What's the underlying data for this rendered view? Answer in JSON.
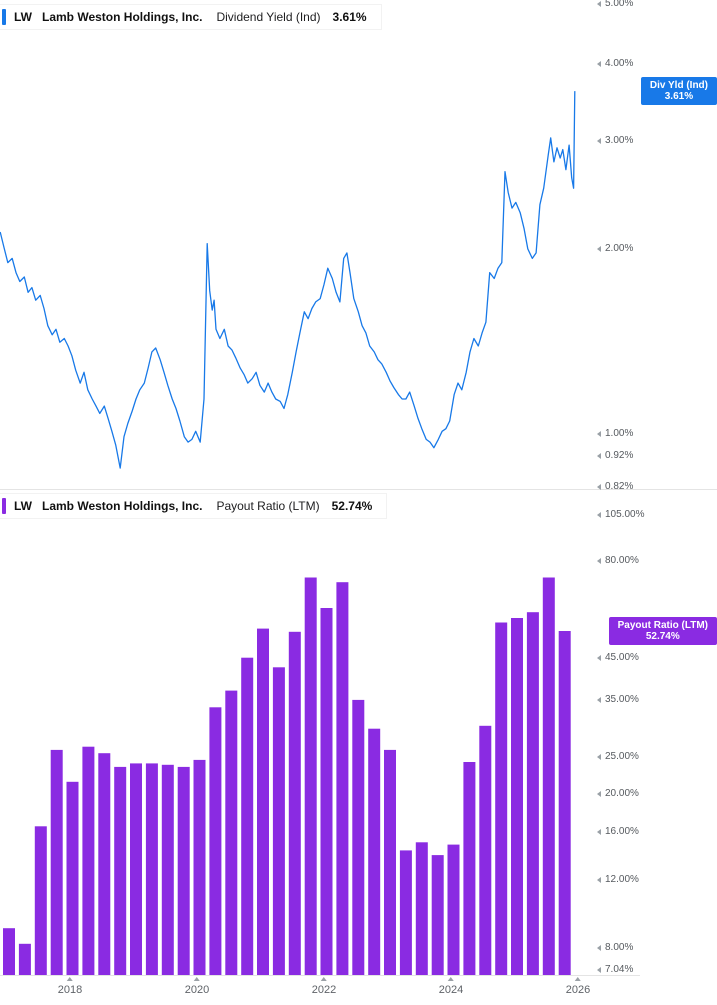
{
  "panels": [
    {
      "id": "dividend-yield",
      "color": "#1879e8",
      "legend": {
        "ticker": "LW",
        "company": "Lamb Weston Holdings, Inc.",
        "metric": "Dividend Yield (Ind)",
        "value": "3.61%"
      },
      "badge": {
        "line1": "Div Yld (Ind)",
        "line2": "3.61%",
        "value_num": 3.61
      },
      "y_ticks": [
        {
          "label": "5.00%",
          "value": 5.0
        },
        {
          "label": "4.00%",
          "value": 4.0
        },
        {
          "label": "3.00%",
          "value": 3.0
        },
        {
          "label": "2.00%",
          "value": 2.0
        },
        {
          "label": "1.00%",
          "value": 1.0
        },
        {
          "label": "0.92%",
          "value": 0.92
        },
        {
          "label": "0.82%",
          "value": 0.82
        }
      ]
    },
    {
      "id": "payout-ratio",
      "color": "#8a2be2",
      "legend": {
        "ticker": "LW",
        "company": "Lamb Weston Holdings, Inc.",
        "metric": "Payout Ratio (LTM)",
        "value": "52.74%"
      },
      "badge": {
        "line1": "Payout Ratio (LTM)",
        "line2": "52.74%",
        "value_num": 52.74
      },
      "y_ticks": [
        {
          "label": "105.00%",
          "value": 105
        },
        {
          "label": "80.00%",
          "value": 80
        },
        {
          "label": "45.00%",
          "value": 45
        },
        {
          "label": "35.00%",
          "value": 35
        },
        {
          "label": "25.00%",
          "value": 25
        },
        {
          "label": "20.00%",
          "value": 20
        },
        {
          "label": "16.00%",
          "value": 16
        },
        {
          "label": "12.00%",
          "value": 12
        },
        {
          "label": "8.00%",
          "value": 8
        },
        {
          "label": "7.04%",
          "value": 7.04
        }
      ]
    }
  ],
  "x_axis": {
    "ticks": [
      {
        "label": "2018",
        "year": 2018
      },
      {
        "label": "2020",
        "year": 2020
      },
      {
        "label": "2022",
        "year": 2022
      },
      {
        "label": "2024",
        "year": 2024
      },
      {
        "label": "2026",
        "year": 2026
      }
    ]
  },
  "chart_data": [
    {
      "type": "line",
      "title": "LW Lamb Weston Holdings, Inc. Dividend Yield (Ind) 3.61%",
      "name": "Dividend Yield (Ind)",
      "unit": "percent",
      "y_scale": "log",
      "x_range": [
        2016.9,
        2025.95
      ],
      "y_ticks": [
        5.0,
        4.0,
        3.0,
        2.0,
        1.0,
        0.92,
        0.82
      ],
      "last_value": 3.61,
      "series": [
        [
          2016.9,
          2.13
        ],
        [
          2016.96,
          2.01
        ],
        [
          2017.02,
          1.9
        ],
        [
          2017.09,
          1.93
        ],
        [
          2017.15,
          1.83
        ],
        [
          2017.21,
          1.77
        ],
        [
          2017.28,
          1.8
        ],
        [
          2017.34,
          1.7
        ],
        [
          2017.4,
          1.73
        ],
        [
          2017.46,
          1.65
        ],
        [
          2017.53,
          1.68
        ],
        [
          2017.59,
          1.6
        ],
        [
          2017.65,
          1.5
        ],
        [
          2017.72,
          1.45
        ],
        [
          2017.78,
          1.48
        ],
        [
          2017.84,
          1.41
        ],
        [
          2017.91,
          1.43
        ],
        [
          2017.97,
          1.39
        ],
        [
          2018.03,
          1.34
        ],
        [
          2018.09,
          1.27
        ],
        [
          2018.16,
          1.21
        ],
        [
          2018.22,
          1.26
        ],
        [
          2018.28,
          1.18
        ],
        [
          2018.35,
          1.14
        ],
        [
          2018.41,
          1.11
        ],
        [
          2018.47,
          1.08
        ],
        [
          2018.54,
          1.11
        ],
        [
          2018.6,
          1.06
        ],
        [
          2018.66,
          1.01
        ],
        [
          2018.72,
          0.96
        ],
        [
          2018.79,
          0.88
        ],
        [
          2018.85,
          0.99
        ],
        [
          2018.91,
          1.04
        ],
        [
          2018.98,
          1.09
        ],
        [
          2019.04,
          1.14
        ],
        [
          2019.1,
          1.18
        ],
        [
          2019.17,
          1.21
        ],
        [
          2019.23,
          1.28
        ],
        [
          2019.29,
          1.36
        ],
        [
          2019.35,
          1.38
        ],
        [
          2019.42,
          1.32
        ],
        [
          2019.48,
          1.26
        ],
        [
          2019.54,
          1.2
        ],
        [
          2019.61,
          1.14
        ],
        [
          2019.67,
          1.1
        ],
        [
          2019.73,
          1.05
        ],
        [
          2019.8,
          0.99
        ],
        [
          2019.86,
          0.97
        ],
        [
          2019.92,
          0.98
        ],
        [
          2019.98,
          1.01
        ],
        [
          2020.05,
          0.97
        ],
        [
          2020.11,
          1.14
        ],
        [
          2020.16,
          2.04
        ],
        [
          2020.2,
          1.71
        ],
        [
          2020.24,
          1.59
        ],
        [
          2020.27,
          1.65
        ],
        [
          2020.3,
          1.48
        ],
        [
          2020.36,
          1.43
        ],
        [
          2020.43,
          1.48
        ],
        [
          2020.49,
          1.39
        ],
        [
          2020.55,
          1.37
        ],
        [
          2020.61,
          1.33
        ],
        [
          2020.68,
          1.28
        ],
        [
          2020.74,
          1.25
        ],
        [
          2020.8,
          1.21
        ],
        [
          2020.87,
          1.23
        ],
        [
          2020.93,
          1.26
        ],
        [
          2020.99,
          1.2
        ],
        [
          2021.06,
          1.17
        ],
        [
          2021.12,
          1.21
        ],
        [
          2021.18,
          1.17
        ],
        [
          2021.24,
          1.14
        ],
        [
          2021.31,
          1.13
        ],
        [
          2021.37,
          1.1
        ],
        [
          2021.43,
          1.16
        ],
        [
          2021.5,
          1.26
        ],
        [
          2021.56,
          1.36
        ],
        [
          2021.62,
          1.46
        ],
        [
          2021.69,
          1.58
        ],
        [
          2021.75,
          1.54
        ],
        [
          2021.81,
          1.6
        ],
        [
          2021.87,
          1.64
        ],
        [
          2021.94,
          1.66
        ],
        [
          2022.0,
          1.75
        ],
        [
          2022.06,
          1.86
        ],
        [
          2022.13,
          1.79
        ],
        [
          2022.19,
          1.7
        ],
        [
          2022.25,
          1.64
        ],
        [
          2022.31,
          1.93
        ],
        [
          2022.36,
          1.97
        ],
        [
          2022.41,
          1.83
        ],
        [
          2022.47,
          1.66
        ],
        [
          2022.54,
          1.58
        ],
        [
          2022.6,
          1.5
        ],
        [
          2022.66,
          1.46
        ],
        [
          2022.72,
          1.39
        ],
        [
          2022.79,
          1.36
        ],
        [
          2022.85,
          1.32
        ],
        [
          2022.91,
          1.3
        ],
        [
          2022.98,
          1.26
        ],
        [
          2023.04,
          1.22
        ],
        [
          2023.1,
          1.19
        ],
        [
          2023.17,
          1.16
        ],
        [
          2023.23,
          1.14
        ],
        [
          2023.29,
          1.14
        ],
        [
          2023.35,
          1.17
        ],
        [
          2023.42,
          1.11
        ],
        [
          2023.48,
          1.06
        ],
        [
          2023.54,
          1.02
        ],
        [
          2023.61,
          0.98
        ],
        [
          2023.67,
          0.97
        ],
        [
          2023.73,
          0.95
        ],
        [
          2023.8,
          0.98
        ],
        [
          2023.86,
          1.01
        ],
        [
          2023.92,
          1.02
        ],
        [
          2023.98,
          1.05
        ],
        [
          2024.05,
          1.16
        ],
        [
          2024.11,
          1.21
        ],
        [
          2024.17,
          1.18
        ],
        [
          2024.24,
          1.26
        ],
        [
          2024.3,
          1.36
        ],
        [
          2024.36,
          1.43
        ],
        [
          2024.43,
          1.39
        ],
        [
          2024.49,
          1.46
        ],
        [
          2024.55,
          1.52
        ],
        [
          2024.61,
          1.83
        ],
        [
          2024.68,
          1.79
        ],
        [
          2024.74,
          1.86
        ],
        [
          2024.8,
          1.9
        ],
        [
          2024.85,
          2.67
        ],
        [
          2024.9,
          2.47
        ],
        [
          2024.96,
          2.33
        ],
        [
          2025.02,
          2.38
        ],
        [
          2025.09,
          2.29
        ],
        [
          2025.15,
          2.16
        ],
        [
          2025.21,
          2.0
        ],
        [
          2025.28,
          1.93
        ],
        [
          2025.34,
          1.97
        ],
        [
          2025.4,
          2.36
        ],
        [
          2025.46,
          2.51
        ],
        [
          2025.53,
          2.84
        ],
        [
          2025.57,
          3.03
        ],
        [
          2025.62,
          2.77
        ],
        [
          2025.67,
          2.92
        ],
        [
          2025.72,
          2.81
        ],
        [
          2025.76,
          2.9
        ],
        [
          2025.81,
          2.69
        ],
        [
          2025.86,
          2.95
        ],
        [
          2025.9,
          2.61
        ],
        [
          2025.93,
          2.51
        ],
        [
          2025.95,
          3.61
        ]
      ]
    },
    {
      "type": "bar",
      "title": "LW Lamb Weston Holdings, Inc. Payout Ratio (LTM) 52.74%",
      "name": "Payout Ratio (LTM)",
      "unit": "percent",
      "y_scale": "log",
      "y_ticks": [
        105,
        80,
        45,
        35,
        25,
        20,
        16,
        12,
        8,
        7.04
      ],
      "last_value": 52.74,
      "x": [
        2017.04,
        2017.29,
        2017.54,
        2017.79,
        2018.04,
        2018.29,
        2018.54,
        2018.79,
        2019.04,
        2019.29,
        2019.54,
        2019.79,
        2020.04,
        2020.29,
        2020.54,
        2020.79,
        2021.04,
        2021.29,
        2021.54,
        2021.79,
        2022.04,
        2022.29,
        2022.54,
        2022.79,
        2023.04,
        2023.29,
        2023.54,
        2023.79,
        2024.04,
        2024.29,
        2024.54,
        2024.79,
        2025.04,
        2025.29,
        2025.54,
        2025.79
      ],
      "values": [
        9.0,
        8.2,
        16.5,
        26.0,
        21.5,
        26.5,
        25.5,
        23.5,
        24.0,
        24.0,
        23.8,
        23.5,
        24.5,
        33.5,
        37.0,
        45.0,
        53.5,
        42.5,
        52.5,
        72.5,
        60.5,
        70.5,
        35.0,
        29.5,
        26.0,
        14.3,
        15.0,
        13.9,
        14.8,
        24.2,
        30.0,
        55.5,
        57.0,
        59.0,
        72.5,
        52.74
      ]
    }
  ]
}
